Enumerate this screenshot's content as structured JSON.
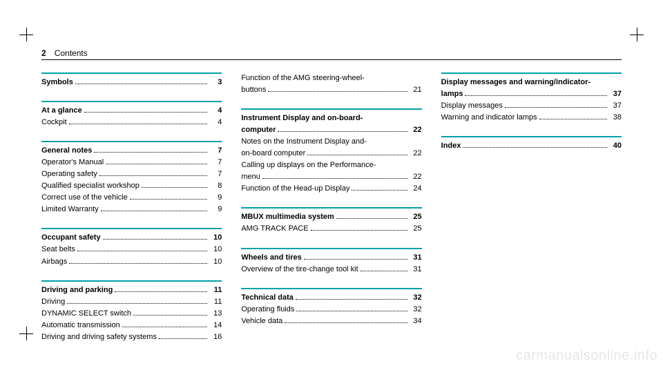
{
  "header": {
    "pageNumber": "2",
    "title": "Contents"
  },
  "accentColor": "#00a0a8",
  "watermark": "carmanualsonline.info",
  "columns": [
    [
      {
        "entries": [
          {
            "label": "Symbols",
            "page": "3",
            "bold": true
          }
        ]
      },
      {
        "entries": [
          {
            "label": "At a glance",
            "page": "4",
            "bold": true
          },
          {
            "label": "Cockpit",
            "page": "4"
          }
        ]
      },
      {
        "entries": [
          {
            "label": "General notes",
            "page": "7",
            "bold": true
          },
          {
            "label": "Operator's Manual",
            "page": "7"
          },
          {
            "label": "Operating safety",
            "page": "7"
          },
          {
            "label": "Qualified specialist workshop",
            "page": "8"
          },
          {
            "label": "Correct use of the vehicle",
            "page": "9"
          },
          {
            "label": "Limited Warranty",
            "page": "9"
          }
        ]
      },
      {
        "entries": [
          {
            "label": "Occupant safety",
            "page": "10",
            "bold": true
          },
          {
            "label": "Seat belts",
            "page": "10"
          },
          {
            "label": "Airbags",
            "page": "10"
          }
        ]
      },
      {
        "entries": [
          {
            "label": "Driving and parking",
            "page": "11",
            "bold": true
          },
          {
            "label": "Driving",
            "page": "11"
          },
          {
            "label": "DYNAMIC SELECT switch",
            "page": "13"
          },
          {
            "label": "Automatic transmission",
            "page": "14"
          },
          {
            "label": "Driving and driving safety systems",
            "page": "16"
          }
        ]
      }
    ],
    [
      {
        "noDivider": true,
        "entries": [
          {
            "label": "Function of the AMG steering-wheel buttons",
            "page": "21"
          }
        ]
      },
      {
        "entries": [
          {
            "label": "Instrument Display and on-board computer",
            "page": "22",
            "bold": true
          },
          {
            "label": "Notes on the Instrument Display and on-board computer",
            "page": "22"
          },
          {
            "label": "Calling up displays on the Performance menu",
            "page": "22"
          },
          {
            "label": "Function of the Head-up Display",
            "page": "24"
          }
        ]
      },
      {
        "entries": [
          {
            "label": "MBUX multimedia system",
            "page": "25",
            "bold": true
          },
          {
            "label": "AMG TRACK PACE",
            "page": "25"
          }
        ]
      },
      {
        "entries": [
          {
            "label": "Wheels and tires",
            "page": "31",
            "bold": true
          },
          {
            "label": "Overview of the tire-change tool kit",
            "page": "31"
          }
        ]
      },
      {
        "entries": [
          {
            "label": "Technical data",
            "page": "32",
            "bold": true
          },
          {
            "label": "Operating fluids",
            "page": "32"
          },
          {
            "label": "Vehicle data",
            "page": "34"
          }
        ]
      }
    ],
    [
      {
        "entries": [
          {
            "label": "Display messages and warning/indicator lamps",
            "page": "37",
            "bold": true
          },
          {
            "label": "Display messages",
            "page": "37"
          },
          {
            "label": "Warning and indicator lamps",
            "page": "38"
          }
        ]
      },
      {
        "entries": [
          {
            "label": "Index",
            "page": "40",
            "bold": true
          }
        ]
      }
    ]
  ]
}
